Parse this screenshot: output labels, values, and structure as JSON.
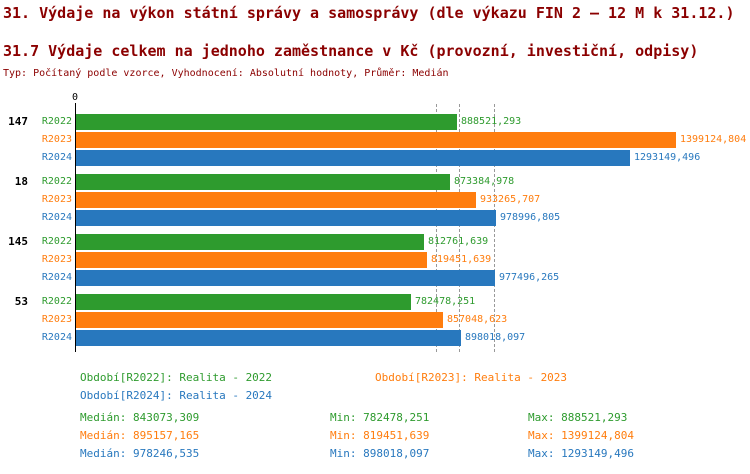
{
  "title": "31. Výdaje na výkon státní správy a samosprávy (dle výkazu FIN 2 – 12 M k 31.12.)",
  "subtitle": "31.7 Výdaje celkem na jednoho zaměstnance v Kč (provozní, investiční, odpisy)",
  "meta": "Typ: Počítaný podle vzorce, Vyhodnocení: Absolutní hodnoty, Průměr: Medián",
  "colors": {
    "heading": "#8b0000",
    "axis": "#000000",
    "median_line": "#999999"
  },
  "chart_data": {
    "type": "bar",
    "orientation": "horizontal",
    "axis_origin_label": "0",
    "xlim": [
      0,
      1400000
    ],
    "grid": "median-dashed-lines",
    "legend_position": "bottom",
    "series_colors": {
      "R2022": "#2e9b2e",
      "R2023": "#ff7d0e",
      "R2024": "#2878be"
    },
    "groups": [
      {
        "label": "147",
        "bars": [
          {
            "series": "R2022",
            "value": 888521.293,
            "label": "888521,293"
          },
          {
            "series": "R2023",
            "value": 1399124.804,
            "label": "1399124,804"
          },
          {
            "series": "R2024",
            "value": 1293149.496,
            "label": "1293149,496"
          }
        ]
      },
      {
        "label": "18",
        "bars": [
          {
            "series": "R2022",
            "value": 873384.978,
            "label": "873384,978"
          },
          {
            "series": "R2023",
            "value": 933265.707,
            "label": "933265,707"
          },
          {
            "series": "R2024",
            "value": 978996.805,
            "label": "978996,805"
          }
        ]
      },
      {
        "label": "145",
        "bars": [
          {
            "series": "R2022",
            "value": 812761.639,
            "label": "812761,639"
          },
          {
            "series": "R2023",
            "value": 819451.639,
            "label": "819451,639"
          },
          {
            "series": "R2024",
            "value": 977496.265,
            "label": "977496,265"
          }
        ]
      },
      {
        "label": "53",
        "bars": [
          {
            "series": "R2022",
            "value": 782478.251,
            "label": "782478,251"
          },
          {
            "series": "R2023",
            "value": 857048.623,
            "label": "857048,623"
          },
          {
            "series": "R2024",
            "value": 898018.097,
            "label": "898018,097"
          }
        ]
      }
    ],
    "median_lines": [
      {
        "series": "R2022",
        "value": 843073.309
      },
      {
        "series": "R2023",
        "value": 895157.165
      },
      {
        "series": "R2024",
        "value": 978246.535
      }
    ]
  },
  "legend": [
    {
      "series": "R2022",
      "label": "Období[R2022]: Realita - 2022"
    },
    {
      "series": "R2023",
      "label": "Období[R2023]: Realita - 2023"
    },
    {
      "series": "R2024",
      "label": "Období[R2024]: Realita - 2024"
    }
  ],
  "stats_labels": {
    "median": "Medián:",
    "min": "Min:",
    "max": "Max:"
  },
  "stats": [
    {
      "series": "R2022",
      "median": "843073,309",
      "min": "782478,251",
      "max": "888521,293"
    },
    {
      "series": "R2023",
      "median": "895157,165",
      "min": "819451,639",
      "max": "1399124,804"
    },
    {
      "series": "R2024",
      "median": "978246,535",
      "min": "898018,097",
      "max": "1293149,496"
    }
  ]
}
